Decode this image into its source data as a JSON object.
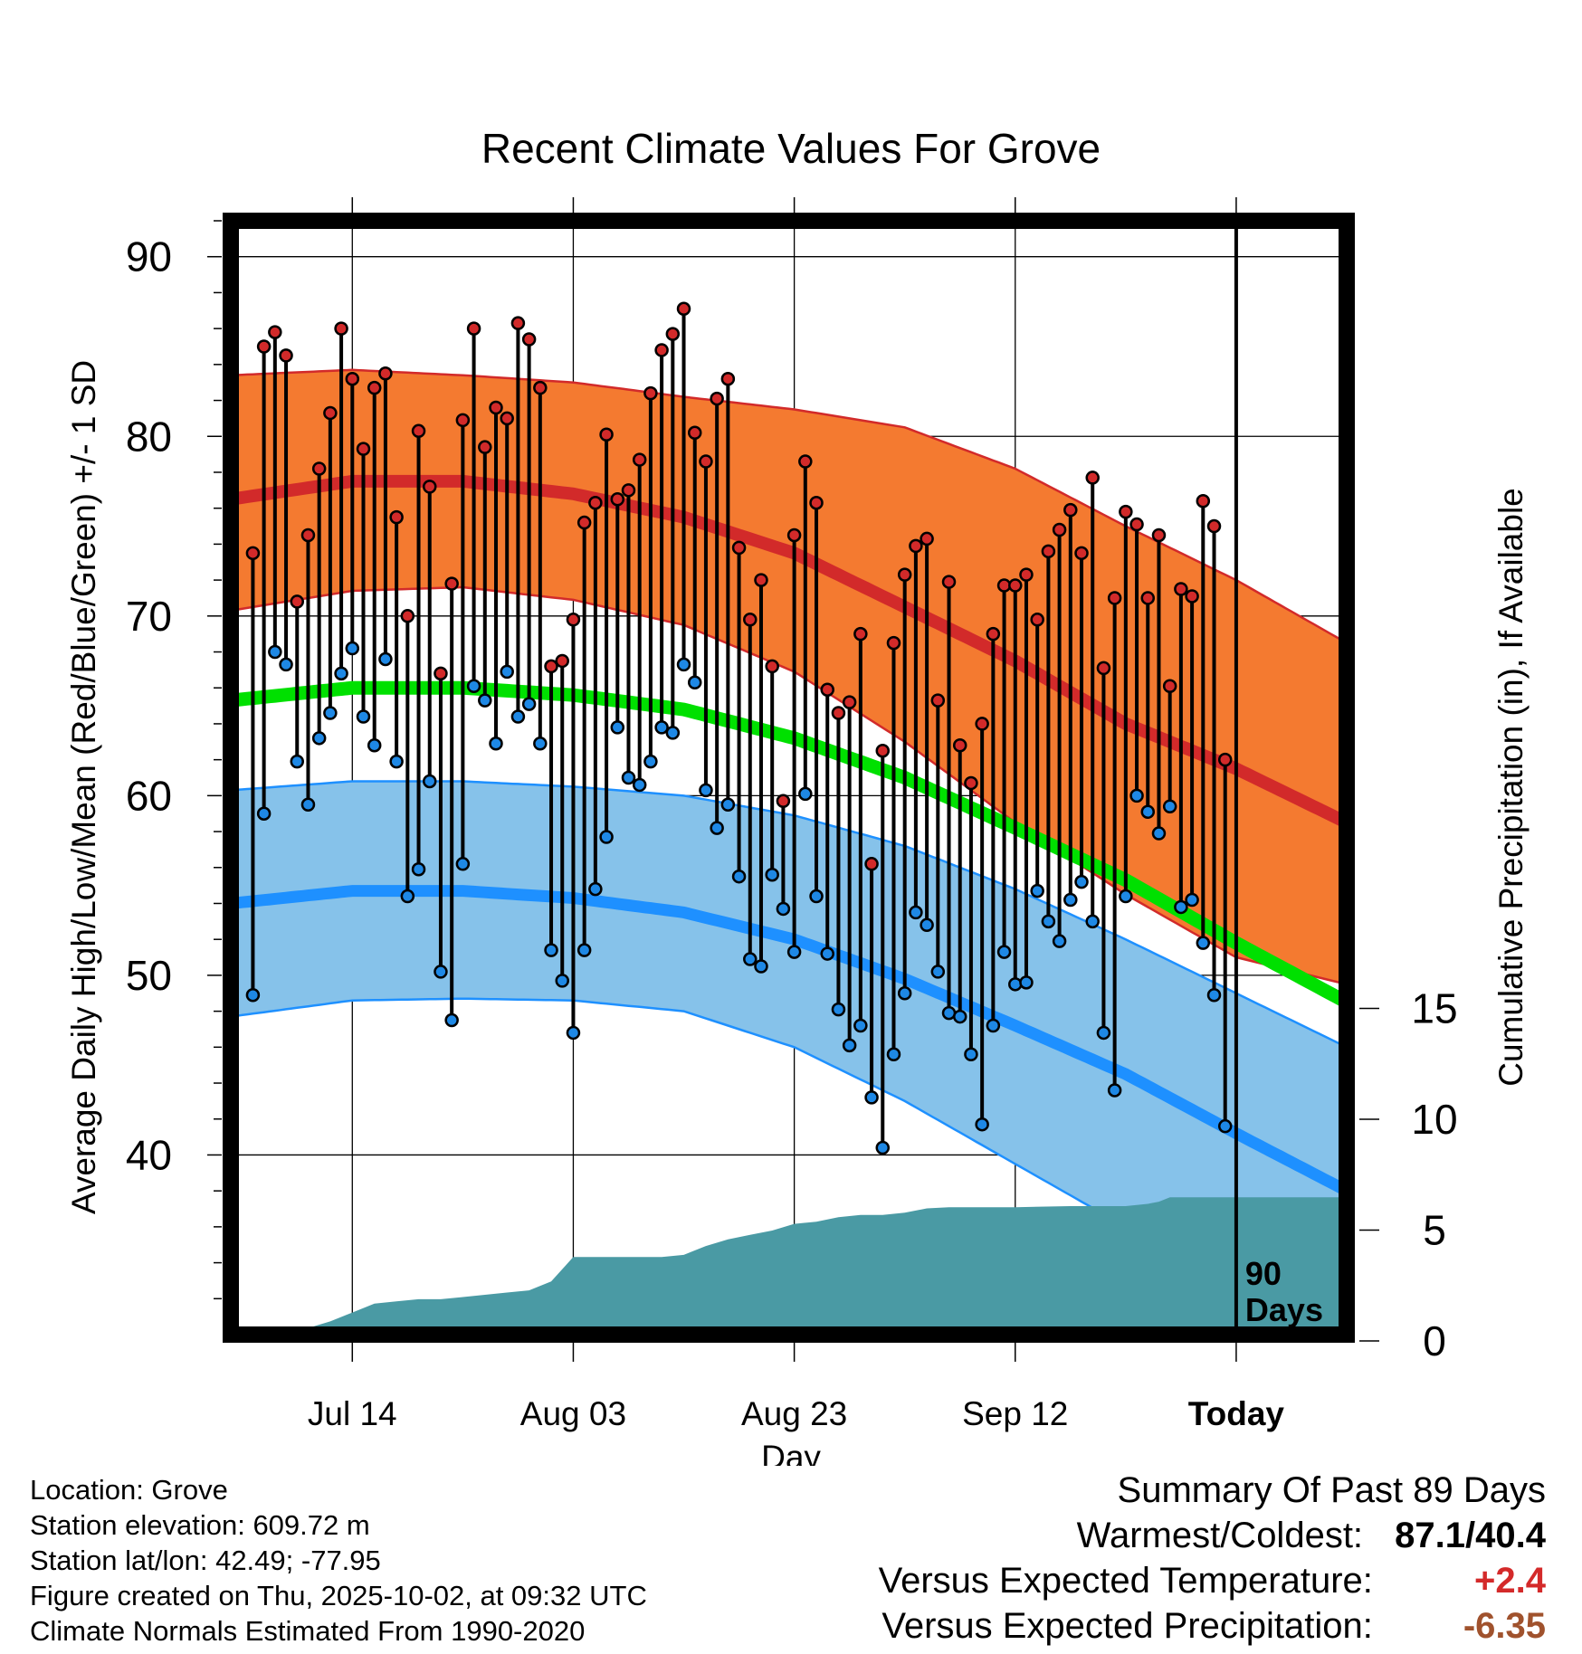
{
  "colors": {
    "high_band": "#f47a30",
    "high_line": "#d22a2a",
    "low_band": "#86c2ea",
    "low_line": "#1e90ff",
    "mean_line": "#00e000",
    "precip": "#4a9aa4",
    "high_dot": "#d22a2a",
    "low_dot": "#1e88e5"
  },
  "chart_data": {
    "type": "line",
    "title": "Recent Climate Values For Grove",
    "xlabel": "Day",
    "ylabel": "Average Daily High/Low/Mean (Red/Blue/Green) +/- 1 SD",
    "y2label": "Cumulative Precipitation (in), If Available",
    "ylim": [
      30,
      92
    ],
    "y_ticks": [
      40,
      50,
      60,
      70,
      80,
      90
    ],
    "y2lim": [
      0,
      18
    ],
    "y2_ticks": [
      0,
      5,
      10,
      15
    ],
    "xlim": [
      -91,
      10
    ],
    "x_ticks": [
      {
        "day": -80,
        "label": "Jul 14"
      },
      {
        "day": -60,
        "label": "Aug 03"
      },
      {
        "day": -40,
        "label": "Aug 23"
      },
      {
        "day": -20,
        "label": "Sep 12"
      },
      {
        "day": 0,
        "label": "Today"
      }
    ],
    "marker_label": [
      "90",
      "Days"
    ],
    "normal_high": [
      [
        -91,
        76.5
      ],
      [
        -80,
        77.5
      ],
      [
        -70,
        77.5
      ],
      [
        -60,
        76.8
      ],
      [
        -50,
        75.5
      ],
      [
        -40,
        73.5
      ],
      [
        -30,
        70.5
      ],
      [
        -20,
        67.5
      ],
      [
        -10,
        64.0
      ],
      [
        0,
        61.5
      ],
      [
        10,
        58.5
      ]
    ],
    "normal_high_upper": [
      [
        -91,
        83.4
      ],
      [
        -80,
        83.7
      ],
      [
        -70,
        83.4
      ],
      [
        -60,
        83
      ],
      [
        -50,
        82.2
      ],
      [
        -40,
        81.5
      ],
      [
        -30,
        80.5
      ],
      [
        -20,
        78.2
      ],
      [
        -10,
        75
      ],
      [
        0,
        72
      ],
      [
        10,
        68.5
      ]
    ],
    "normal_high_lower": [
      [
        -91,
        70.3
      ],
      [
        -80,
        71.4
      ],
      [
        -70,
        71.6
      ],
      [
        -60,
        70.9
      ],
      [
        -50,
        69.5
      ],
      [
        -40,
        66.9
      ],
      [
        -30,
        63
      ],
      [
        -20,
        58.5
      ],
      [
        -10,
        54.5
      ],
      [
        0,
        51
      ],
      [
        10,
        49.5
      ]
    ],
    "normal_mean": [
      [
        -91,
        65.3
      ],
      [
        -80,
        66
      ],
      [
        -70,
        66
      ],
      [
        -60,
        65.6
      ],
      [
        -50,
        64.8
      ],
      [
        -40,
        63.2
      ],
      [
        -30,
        61
      ],
      [
        -20,
        58.2
      ],
      [
        -10,
        55.3
      ],
      [
        0,
        51.8
      ],
      [
        10,
        48.5
      ]
    ],
    "normal_low": [
      [
        -91,
        54
      ],
      [
        -80,
        54.7
      ],
      [
        -70,
        54.7
      ],
      [
        -60,
        54.3
      ],
      [
        -50,
        53.5
      ],
      [
        -40,
        52
      ],
      [
        -30,
        49.8
      ],
      [
        -20,
        47.2
      ],
      [
        -10,
        44.5
      ],
      [
        0,
        41.2
      ],
      [
        10,
        38
      ]
    ],
    "normal_low_upper": [
      [
        -91,
        60.3
      ],
      [
        -80,
        60.8
      ],
      [
        -70,
        60.8
      ],
      [
        -60,
        60.5
      ],
      [
        -50,
        60
      ],
      [
        -40,
        58.9
      ],
      [
        -30,
        57.2
      ],
      [
        -20,
        54.8
      ],
      [
        -10,
        52
      ],
      [
        0,
        49
      ],
      [
        10,
        46
      ]
    ],
    "normal_low_lower": [
      [
        -91,
        47.7
      ],
      [
        -80,
        48.6
      ],
      [
        -70,
        48.7
      ],
      [
        -60,
        48.6
      ],
      [
        -50,
        48
      ],
      [
        -40,
        46
      ],
      [
        -30,
        43
      ],
      [
        -20,
        39.5
      ],
      [
        -10,
        36
      ],
      [
        0,
        32.5
      ],
      [
        10,
        30
      ]
    ],
    "daily_highs": [
      73.5,
      85,
      85.8,
      84.5,
      70.8,
      74.5,
      78.2,
      81.3,
      86,
      83.2,
      79.3,
      82.7,
      83.5,
      75.5,
      70,
      80.3,
      77.2,
      66.8,
      71.8,
      80.9,
      86,
      79.4,
      81.6,
      81,
      86.3,
      85.4,
      82.7,
      67.2,
      67.5,
      69.8,
      75.2,
      76.3,
      80.1,
      76.5,
      77,
      78.7,
      82.4,
      84.8,
      85.7,
      87.1,
      80.2,
      78.6,
      82.1,
      83.2,
      73.8,
      69.8,
      72,
      67.2,
      59.7,
      74.5,
      78.6,
      76.3,
      65.9,
      64.6,
      65.2,
      69,
      56.2,
      62.5,
      68.5,
      72.3,
      73.9,
      74.3,
      65.3,
      71.9,
      62.8,
      60.7,
      64,
      69,
      71.7,
      71.7,
      72.3,
      69.8,
      73.6,
      74.8,
      75.9,
      73.5,
      77.7,
      67.1,
      71,
      75.8,
      75.1,
      71,
      74.5,
      66.1,
      71.5,
      71.1,
      76.4,
      75,
      62
    ],
    "daily_lows": [
      48.9,
      59,
      68,
      67.3,
      61.9,
      59.5,
      63.2,
      64.6,
      66.8,
      68.2,
      64.4,
      62.8,
      67.6,
      61.9,
      54.4,
      55.9,
      60.8,
      50.2,
      47.5,
      56.2,
      66.1,
      65.3,
      62.9,
      66.9,
      64.4,
      65.1,
      62.9,
      51.4,
      49.7,
      46.8,
      51.4,
      54.8,
      57.7,
      63.8,
      61,
      60.6,
      61.9,
      63.8,
      63.5,
      67.3,
      66.3,
      60.3,
      58.2,
      59.5,
      55.5,
      50.9,
      50.5,
      55.6,
      53.7,
      51.3,
      60.1,
      54.4,
      51.2,
      48.1,
      46.1,
      47.2,
      43.2,
      40.4,
      45.6,
      49,
      53.5,
      52.8,
      50.2,
      47.9,
      47.7,
      45.6,
      41.7,
      47.2,
      51.3,
      49.5,
      49.6,
      54.7,
      53,
      51.9,
      54.2,
      55.2,
      53,
      46.8,
      43.6,
      54.4,
      60,
      59.1,
      57.9,
      59.4,
      53.8,
      54.2,
      51.8,
      48.9,
      41.6
    ],
    "precip_cumulative": [
      [
        -85,
        0
      ],
      [
        -84,
        0.5
      ],
      [
        -82,
        0.8
      ],
      [
        -80,
        1.2
      ],
      [
        -78,
        1.6
      ],
      [
        -76,
        1.7
      ],
      [
        -74,
        1.8
      ],
      [
        -72,
        1.8
      ],
      [
        -70,
        1.9
      ],
      [
        -68,
        2.0
      ],
      [
        -66,
        2.1
      ],
      [
        -64,
        2.2
      ],
      [
        -62,
        2.6
      ],
      [
        -60,
        3.7
      ],
      [
        -58,
        3.7
      ],
      [
        -56,
        3.7
      ],
      [
        -54,
        3.7
      ],
      [
        -52,
        3.7
      ],
      [
        -50,
        3.8
      ],
      [
        -48,
        4.2
      ],
      [
        -46,
        4.5
      ],
      [
        -44,
        4.7
      ],
      [
        -42,
        4.9
      ],
      [
        -40,
        5.2
      ],
      [
        -38,
        5.3
      ],
      [
        -36,
        5.5
      ],
      [
        -34,
        5.6
      ],
      [
        -32,
        5.6
      ],
      [
        -30,
        5.7
      ],
      [
        -28,
        5.9
      ],
      [
        -26,
        5.95
      ],
      [
        -24,
        5.95
      ],
      [
        -22,
        5.95
      ],
      [
        -20,
        5.95
      ],
      [
        -15,
        6.0
      ],
      [
        -10,
        6.0
      ],
      [
        -8,
        6.1
      ],
      [
        -7,
        6.2
      ],
      [
        -6,
        6.4
      ],
      [
        0,
        6.4
      ],
      [
        10,
        6.4
      ]
    ]
  },
  "info": {
    "location": "Location: Grove",
    "elevation": "Station elevation: 609.72 m",
    "latlon": "Station lat/lon: 42.49; -77.95",
    "created": "Figure created on Thu, 2025-10-02, at 09:32 UTC",
    "normals": "Climate Normals Estimated From 1990-2020"
  },
  "summary": {
    "heading": "Summary Of Past 89 Days",
    "warm_cold_label": "Warmest/Coldest:",
    "warm_cold_value": "87.1/40.4",
    "temp_label": "Versus Expected Temperature:",
    "temp_value": "+2.4",
    "precip_label": "Versus Expected Precipitation:",
    "precip_value": "-6.35"
  }
}
